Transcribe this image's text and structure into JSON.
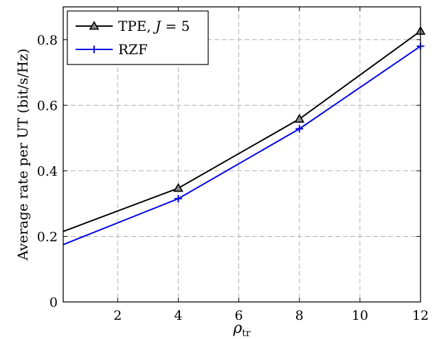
{
  "chart_data": {
    "type": "line",
    "title": "",
    "xlabel_symbol": "ρ",
    "xlabel_subscript": "tr",
    "ylabel": "Average rate per UT (bit/s/Hz)",
    "xlim": [
      0.2,
      12
    ],
    "ylim": [
      0,
      0.9
    ],
    "x_ticks": [
      2,
      4,
      6,
      8,
      10,
      12
    ],
    "y_ticks": [
      0,
      0.2,
      0.4,
      0.6,
      0.8
    ],
    "y_tick_labels": [
      "0",
      "0.2",
      "0.4",
      "0.6",
      "0.8"
    ],
    "grid": true,
    "legend_position": "top-left",
    "series": [
      {
        "name": "TPE, J = 5",
        "legend_prefix": "TPE, ",
        "legend_var": "J",
        "legend_suffix": " = 5",
        "color": "#000000",
        "marker": "triangle",
        "x": [
          0.2,
          4,
          8,
          12
        ],
        "y": [
          0.215,
          0.347,
          0.558,
          0.826
        ]
      },
      {
        "name": "RZF",
        "legend_prefix": "RZF",
        "color": "#0000e6",
        "marker": "plus",
        "x": [
          0.2,
          4,
          8,
          12
        ],
        "y": [
          0.175,
          0.315,
          0.528,
          0.78
        ]
      }
    ]
  }
}
